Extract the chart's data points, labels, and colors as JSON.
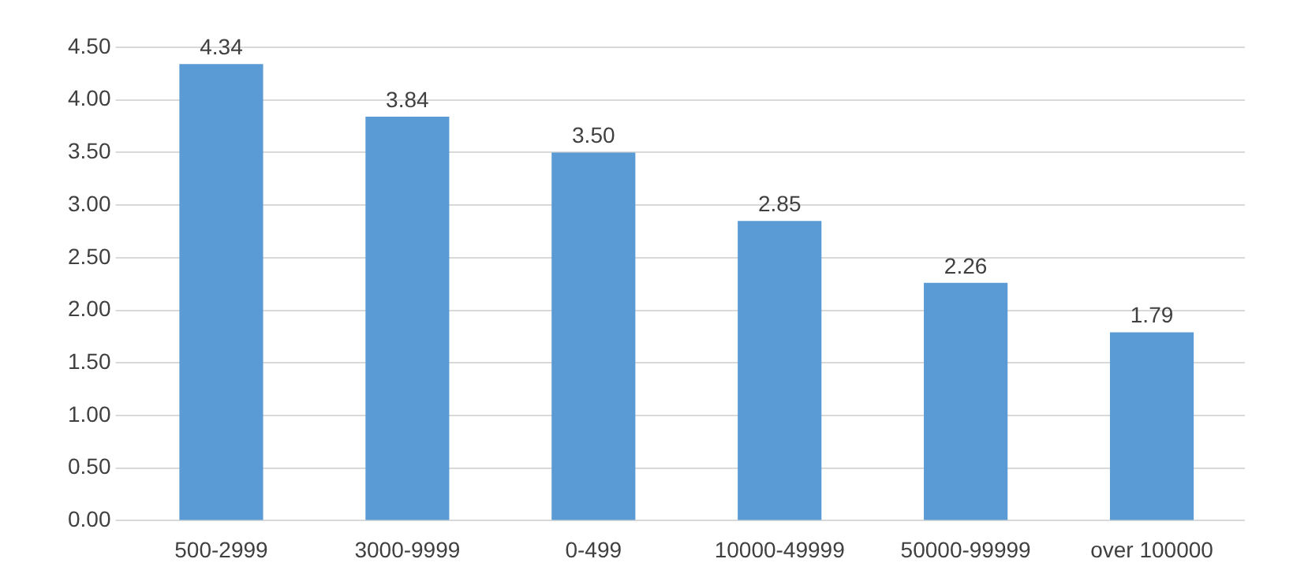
{
  "chart_data": {
    "type": "bar",
    "categories": [
      "500-2999",
      "3000-9999",
      "0-499",
      "10000-49999",
      "50000-99999",
      "over 100000"
    ],
    "values": [
      4.34,
      3.84,
      3.5,
      2.85,
      2.26,
      1.79
    ],
    "value_labels": [
      "4.34",
      "3.84",
      "3.50",
      "2.85",
      "2.26",
      "1.79"
    ],
    "color": "#5b9bd5",
    "ylim": [
      0,
      4.5
    ],
    "yticks": [
      {
        "value": 0,
        "label": "0.00"
      },
      {
        "value": 0.5,
        "label": "0.50"
      },
      {
        "value": 1,
        "label": "1.00"
      },
      {
        "value": 1.5,
        "label": "1.50"
      },
      {
        "value": 2,
        "label": "2.00"
      },
      {
        "value": 2.5,
        "label": "2.50"
      },
      {
        "value": 3,
        "label": "3.00"
      },
      {
        "value": 3.5,
        "label": "3.50"
      },
      {
        "value": 4,
        "label": "4.00"
      },
      {
        "value": 4.5,
        "label": "4.50"
      }
    ],
    "grid": "y"
  }
}
